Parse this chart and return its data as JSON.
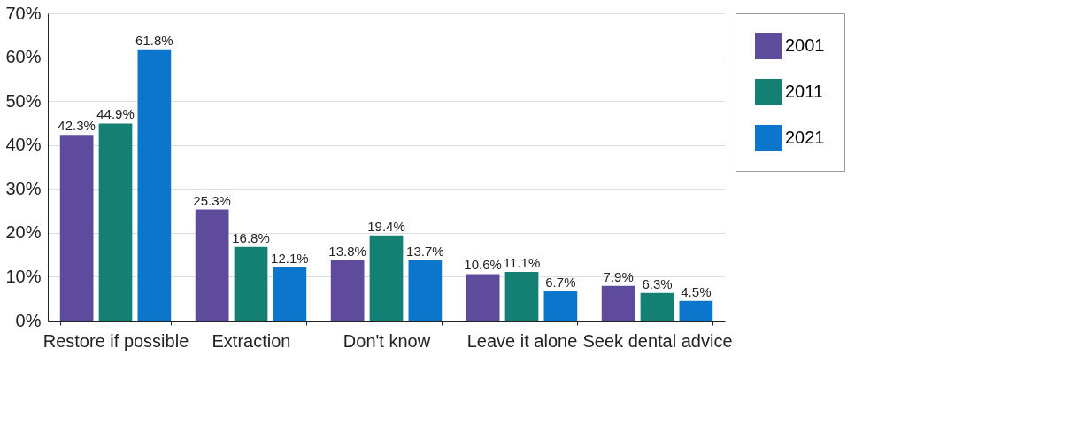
{
  "chart_data": {
    "type": "bar",
    "categories": [
      "Restore if possible",
      "Extraction",
      "Don't know",
      "Leave it alone",
      "Seek dental advice"
    ],
    "series": [
      {
        "name": "2001",
        "color": "#5e4b9c",
        "values": [
          42.3,
          25.3,
          13.8,
          10.6,
          7.9
        ],
        "value_labels": [
          "42.3%",
          "25.3%",
          "13.8%",
          "10.6%",
          "7.9%"
        ]
      },
      {
        "name": "2011",
        "color": "#148073",
        "values": [
          44.9,
          16.8,
          19.4,
          11.1,
          6.3
        ],
        "value_labels": [
          "44.9%",
          "16.8%",
          "19.4%",
          "11.1%",
          "6.3%"
        ]
      },
      {
        "name": "2021",
        "color": "#0b76cb",
        "values": [
          61.8,
          12.1,
          13.7,
          6.7,
          4.5
        ],
        "value_labels": [
          "61.8%",
          "12.1%",
          "13.7%",
          "6.7%",
          "4.5%"
        ]
      }
    ],
    "ylim": [
      0,
      70
    ],
    "yticks": [
      {
        "value": 0,
        "label": "0%"
      },
      {
        "value": 10,
        "label": "10%"
      },
      {
        "value": 20,
        "label": "20%"
      },
      {
        "value": 30,
        "label": "30%"
      },
      {
        "value": 40,
        "label": "40%"
      },
      {
        "value": 50,
        "label": "50%"
      },
      {
        "value": 60,
        "label": "60%"
      },
      {
        "value": 70,
        "label": "70%"
      }
    ],
    "grid": "y",
    "legend": "right"
  }
}
